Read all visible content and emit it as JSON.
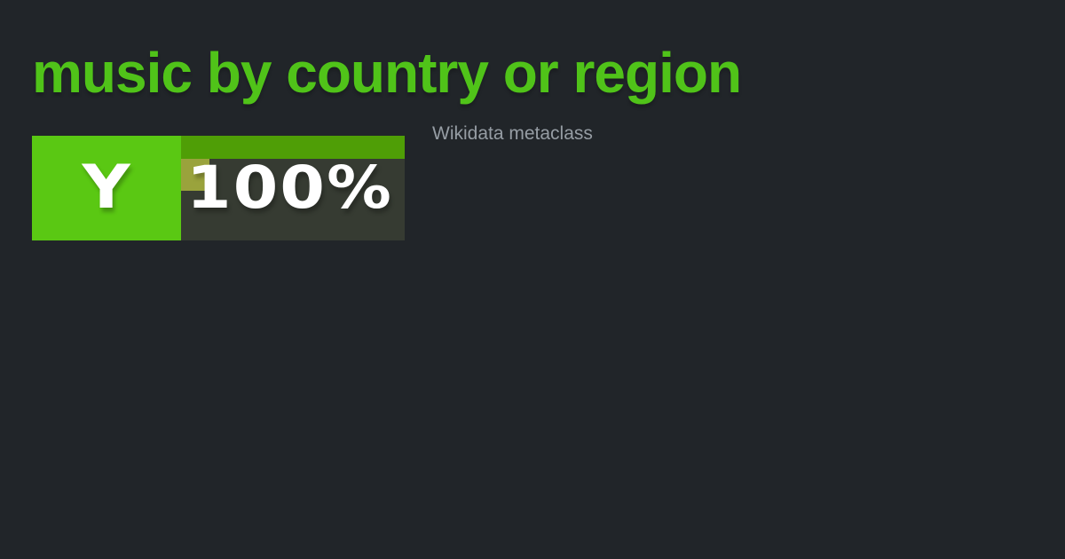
{
  "title": {
    "text": "music by country or region"
  },
  "subtitle": {
    "text": "Wikidata metaclass"
  },
  "badge": {
    "letter": "Y",
    "percent": "100%"
  },
  "colors": {
    "bg": "#212529",
    "title_green": "#50c319",
    "square_green": "#5ac813",
    "bar_green": "#4f9e06",
    "panel_dark": "#363b32",
    "chip_olive": "#9aa33c",
    "text_white": "#ffffff",
    "subtitle_gray": "#969da4"
  }
}
